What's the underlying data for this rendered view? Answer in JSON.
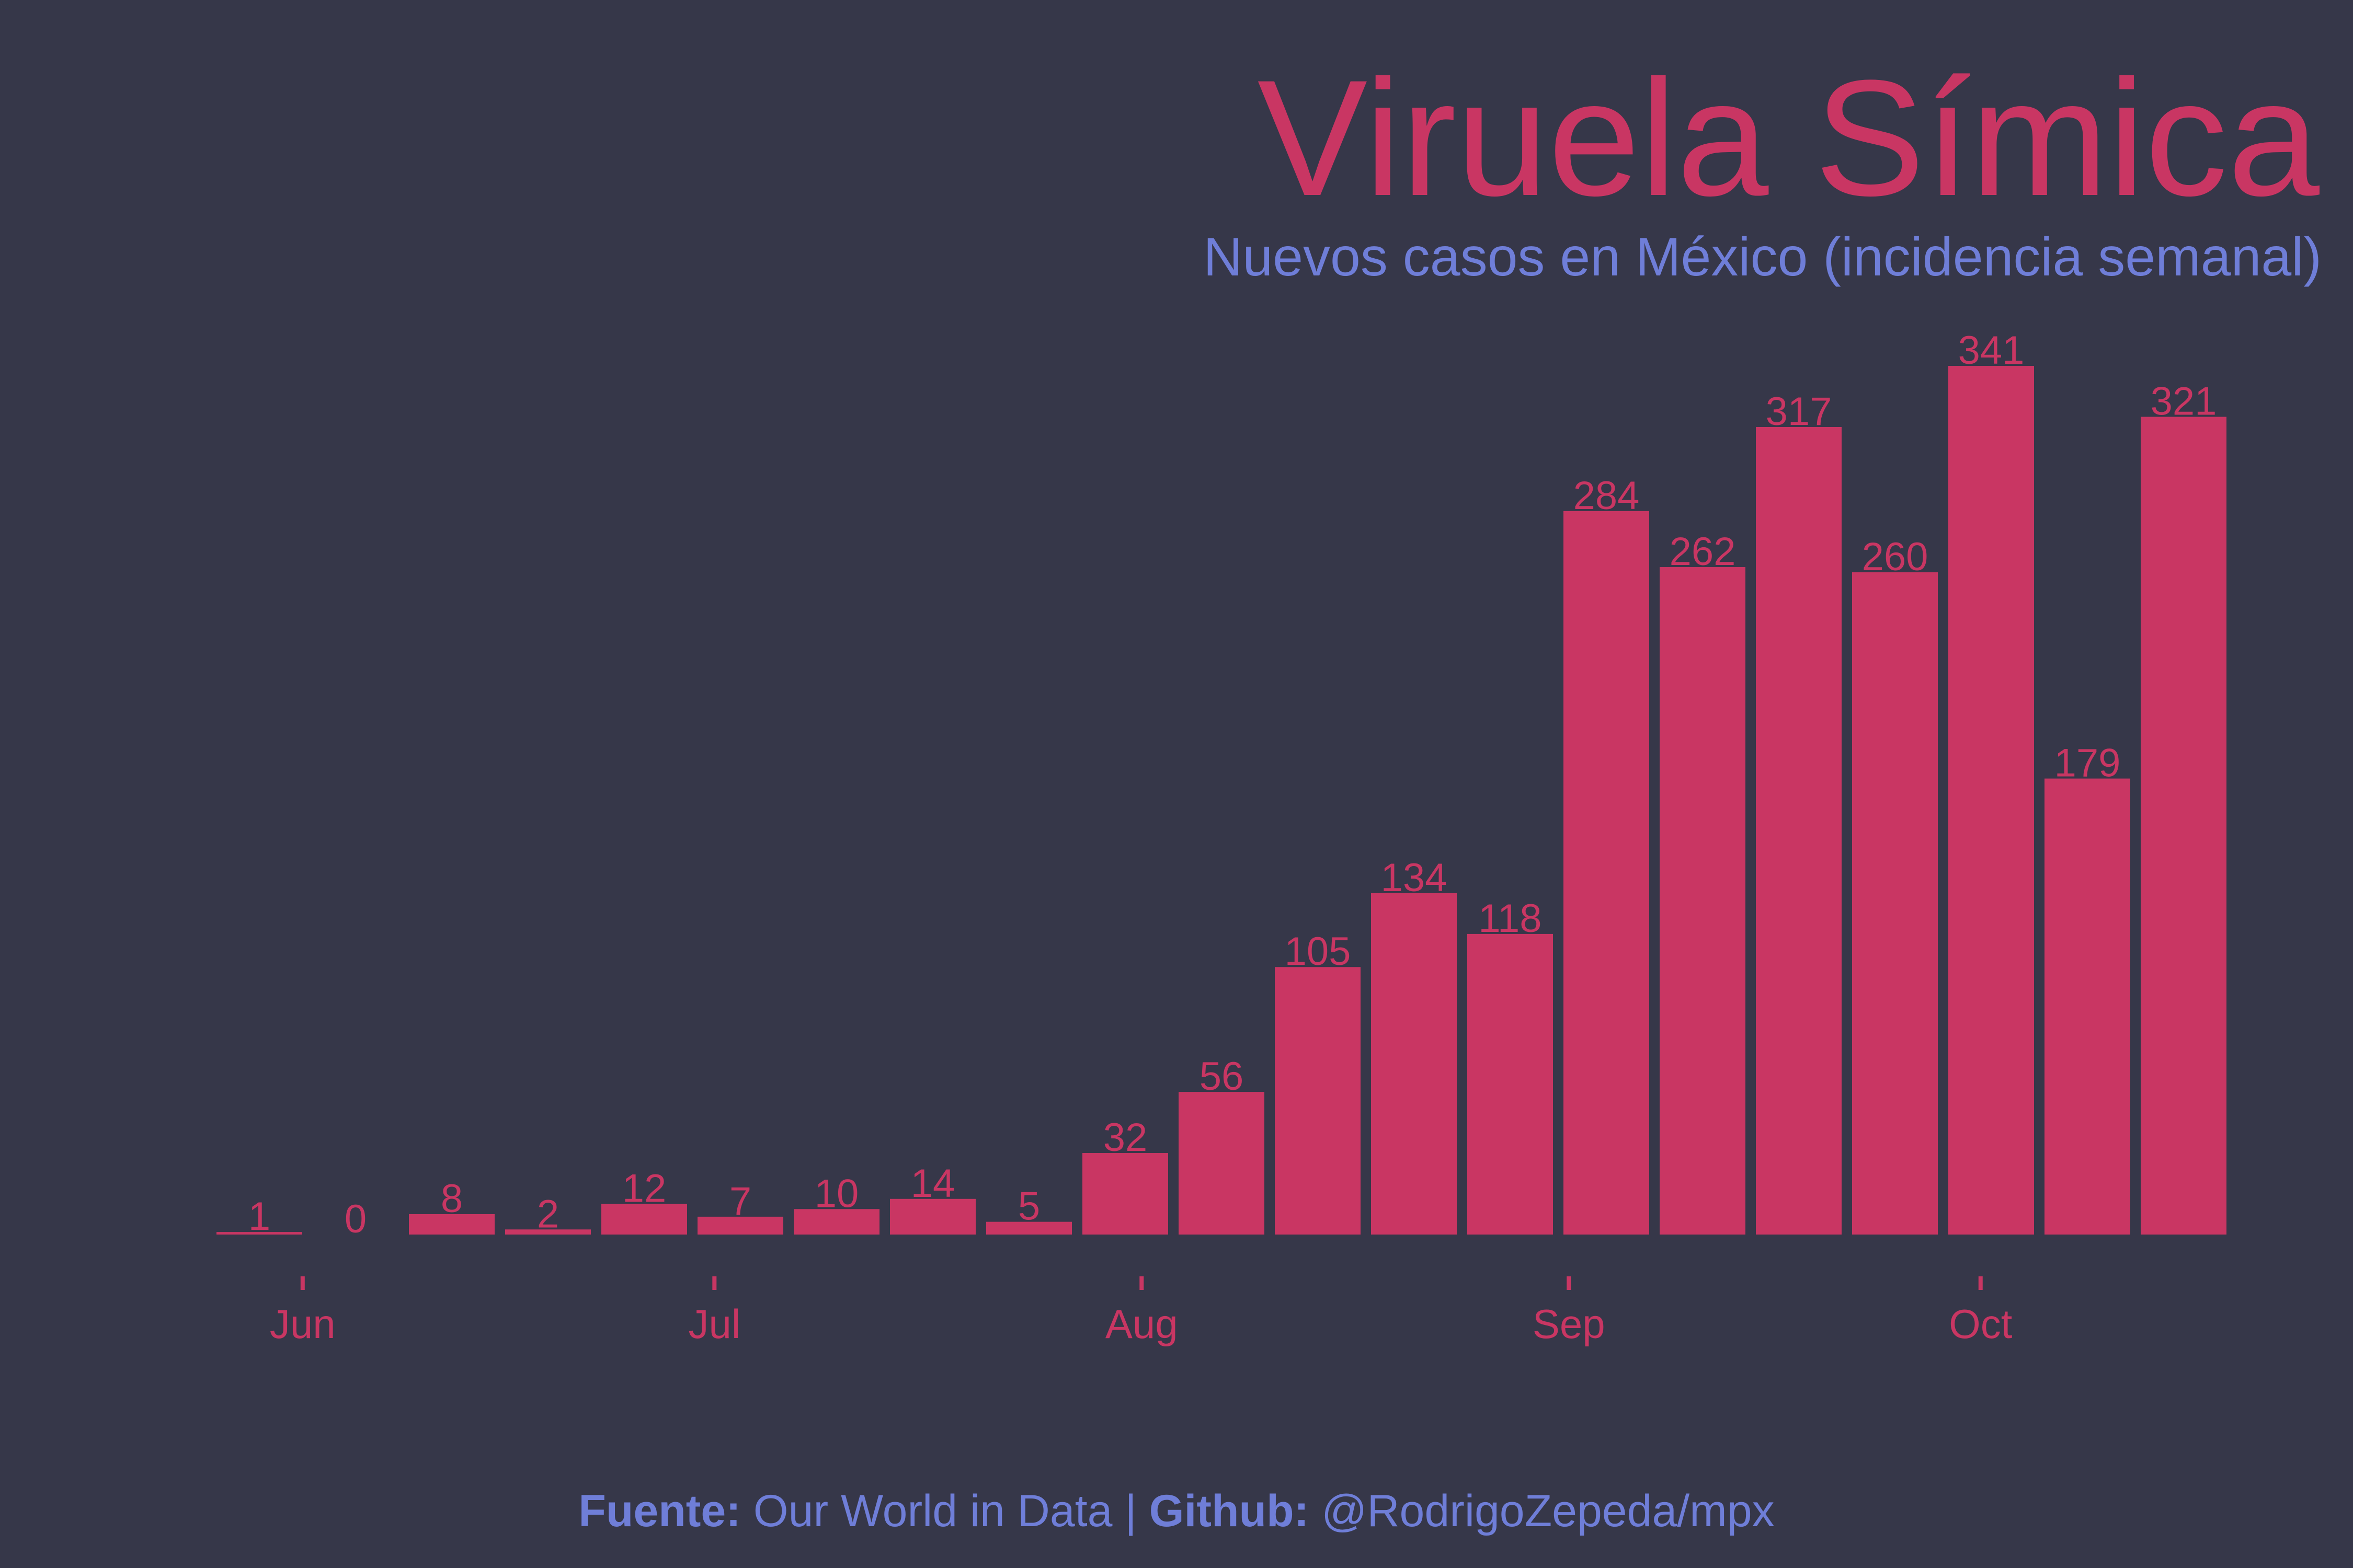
{
  "colors": {
    "background": "#363749",
    "bar": "#C93663",
    "title": "#C93663",
    "subtitle": "#6F7ED8",
    "caption": "#6F7ED8"
  },
  "chart_data": {
    "type": "bar",
    "title": "Viruela Símica",
    "subtitle": "Nuevos casos en México (incidencia semanal)",
    "categories": [
      "",
      "",
      "",
      "",
      "",
      "",
      "",
      "",
      "",
      "",
      "",
      "",
      "",
      "",
      "",
      "",
      "",
      "",
      "",
      "",
      ""
    ],
    "values": [
      1,
      0,
      8,
      2,
      12,
      7,
      10,
      14,
      5,
      32,
      56,
      105,
      134,
      118,
      284,
      262,
      317,
      260,
      341,
      179,
      321
    ],
    "data_labels": true,
    "x_ticks": [
      {
        "label": "Jun",
        "bar_position": 0.45
      },
      {
        "label": "Jul",
        "bar_position": 4.73
      },
      {
        "label": "Aug",
        "bar_position": 9.17
      },
      {
        "label": "Sep",
        "bar_position": 13.61
      },
      {
        "label": "Oct",
        "bar_position": 17.89
      }
    ],
    "xlabel": "",
    "ylabel": "",
    "ylim": [
      0,
      341
    ],
    "grid": false,
    "legend": "none"
  },
  "caption": {
    "source_label": "Fuente:",
    "source_text": " Our World in Data | ",
    "github_label": "Github:",
    "github_text": " @RodrigoZepeda/mpx"
  }
}
